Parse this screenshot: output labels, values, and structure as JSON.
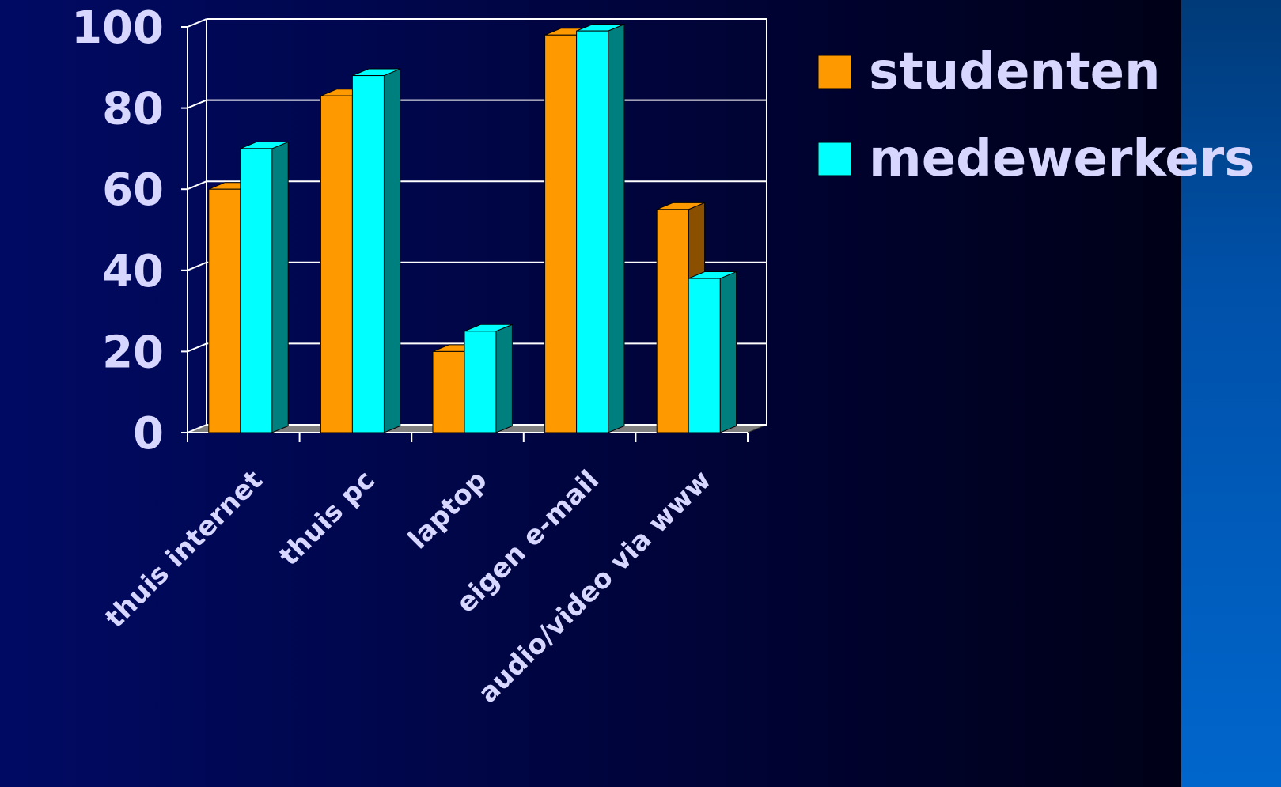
{
  "chart_data": {
    "type": "bar",
    "categories": [
      "thuis internet",
      "thuis pc",
      "laptop",
      "eigen e-mail",
      "audio/video via www"
    ],
    "series": [
      {
        "name": "studenten",
        "values": [
          60,
          83,
          20,
          98,
          55
        ],
        "color": "#ff9900",
        "side_color": "#8a5000"
      },
      {
        "name": "medewerkers",
        "values": [
          70,
          88,
          25,
          99,
          38
        ],
        "color": "#00ffff",
        "side_color": "#007f7f"
      }
    ],
    "ylim": [
      0,
      100
    ],
    "yticks": [
      "0",
      "20",
      "40",
      "60",
      "80",
      "100"
    ],
    "grid": true,
    "legend_position": "right",
    "three_d": true
  }
}
